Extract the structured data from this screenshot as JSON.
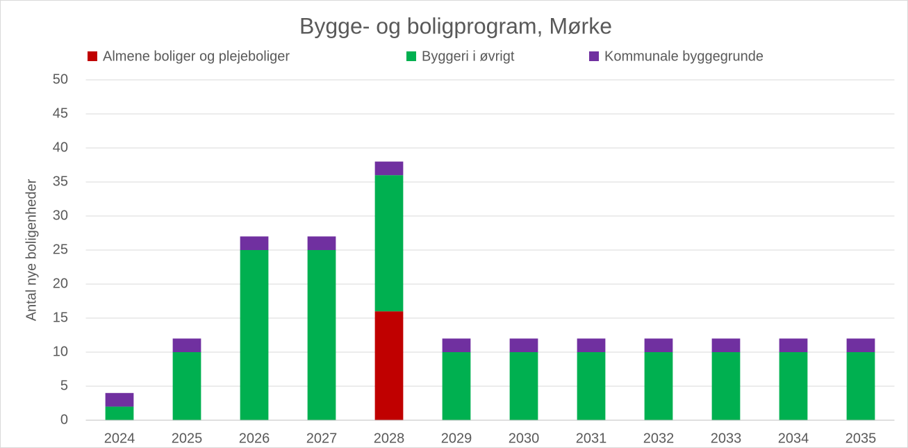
{
  "chart_data": {
    "type": "stacked_bar",
    "title": "Bygge- og boligprogram, Mørke",
    "y_label": "Antal nye boligenheder",
    "categories": [
      "2024",
      "2025",
      "2026",
      "2027",
      "2028",
      "2029",
      "2030",
      "2031",
      "2032",
      "2033",
      "2034",
      "2035"
    ],
    "series": [
      {
        "name": "Almene boliger og plejeboliger",
        "color": "#c00000",
        "values": [
          0,
          0,
          0,
          0,
          16,
          0,
          0,
          0,
          0,
          0,
          0,
          0
        ]
      },
      {
        "name": "Byggeri i øvrigt",
        "color": "#00b050",
        "values": [
          2,
          10,
          25,
          25,
          20,
          10,
          10,
          10,
          10,
          10,
          10,
          10
        ]
      },
      {
        "name": "Kommunale byggegrunde",
        "color": "#7030a0",
        "values": [
          2,
          2,
          2,
          2,
          2,
          2,
          2,
          2,
          2,
          2,
          2,
          2
        ]
      }
    ],
    "ylim": [
      0,
      50
    ],
    "yticks": [
      0,
      5,
      10,
      15,
      20,
      25,
      30,
      35,
      40,
      45,
      50
    ],
    "grid": true,
    "legend": "top"
  }
}
